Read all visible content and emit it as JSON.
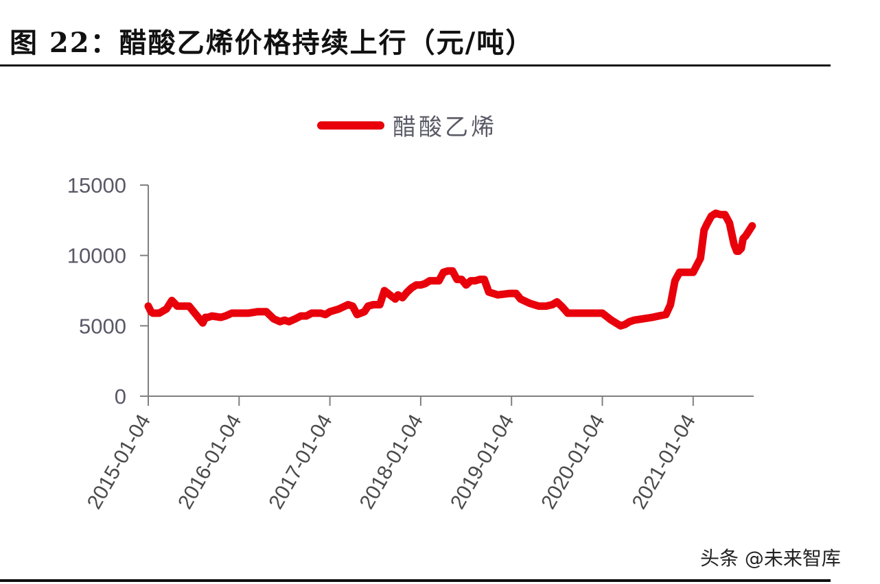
{
  "figure": {
    "title": "图 22：醋酸乙烯价格持续上行（元/吨）",
    "watermark": "头条 @未来智库"
  },
  "chart_data": {
    "type": "line",
    "title": "醋酸乙烯价格持续上行（元/吨）",
    "figure_label": "图 22",
    "xlabel": "",
    "ylabel": "",
    "ylim": [
      0,
      15000
    ],
    "yticks": [
      0,
      5000,
      10000,
      15000
    ],
    "ytick_labels": [
      "0",
      "5000",
      "10000",
      "15000"
    ],
    "xtick_labels": [
      "2015-01-04",
      "2016-01-04",
      "2017-01-04",
      "2018-01-04",
      "2019-01-04",
      "2020-01-04",
      "2021-01-04"
    ],
    "xlim_years": [
      2015.0,
      2021.67
    ],
    "grid": false,
    "legend_position": "top-center",
    "legend": [
      "醋酸乙烯"
    ],
    "series": [
      {
        "name": "醋酸乙烯",
        "color": "#e8000b",
        "x": [
          2015.0,
          2015.03,
          2015.05,
          2015.12,
          2015.2,
          2015.26,
          2015.32,
          2015.38,
          2015.45,
          2015.55,
          2015.6,
          2015.63,
          2015.66,
          2015.7,
          2015.8,
          2015.85,
          2015.92,
          2016.0,
          2016.1,
          2016.2,
          2016.3,
          2016.38,
          2016.45,
          2016.5,
          2016.55,
          2016.62,
          2016.68,
          2016.74,
          2016.8,
          2016.9,
          2016.95,
          2017.0,
          2017.1,
          2017.2,
          2017.25,
          2017.3,
          2017.38,
          2017.42,
          2017.48,
          2017.55,
          2017.6,
          2017.66,
          2017.72,
          2017.75,
          2017.8,
          2017.85,
          2017.9,
          2017.95,
          2018.0,
          2018.05,
          2018.1,
          2018.2,
          2018.25,
          2018.3,
          2018.35,
          2018.4,
          2018.45,
          2018.5,
          2018.55,
          2018.6,
          2018.65,
          2018.7,
          2018.75,
          2018.85,
          2018.98,
          2019.0,
          2019.05,
          2019.1,
          2019.2,
          2019.3,
          2019.38,
          2019.45,
          2019.5,
          2019.55,
          2019.62,
          2019.7,
          2019.8,
          2019.85,
          2019.9,
          2019.95,
          2020.0,
          2020.1,
          2020.2,
          2020.25,
          2020.3,
          2020.35,
          2020.45,
          2020.55,
          2020.62,
          2020.7,
          2020.75,
          2020.8,
          2020.85,
          2020.9,
          2020.95,
          2021.0,
          2021.08,
          2021.12,
          2021.15,
          2021.2,
          2021.25,
          2021.3,
          2021.35,
          2021.4,
          2021.45,
          2021.48,
          2021.5,
          2021.53,
          2021.55,
          2021.58,
          2021.62,
          2021.65
        ],
        "y": [
          6400,
          6000,
          5900,
          5900,
          6200,
          6800,
          6400,
          6400,
          6400,
          5600,
          5200,
          5600,
          5600,
          5700,
          5600,
          5700,
          5900,
          5900,
          5900,
          6000,
          6000,
          5500,
          5300,
          5400,
          5300,
          5500,
          5700,
          5700,
          5900,
          5900,
          5800,
          6000,
          6200,
          6500,
          6400,
          5800,
          6000,
          6400,
          6500,
          6500,
          7500,
          7200,
          6900,
          7200,
          7000,
          7400,
          7700,
          7900,
          7900,
          8000,
          8200,
          8200,
          8800,
          8900,
          8900,
          8300,
          8300,
          7900,
          8200,
          8200,
          8300,
          8300,
          7400,
          7200,
          7300,
          7300,
          7300,
          6900,
          6600,
          6400,
          6400,
          6500,
          6700,
          6400,
          5900,
          5900,
          5900,
          5900,
          5900,
          5900,
          5900,
          5400,
          5000,
          5100,
          5300,
          5400,
          5500,
          5600,
          5700,
          5800,
          6500,
          8200,
          8800,
          8800,
          8800,
          8800,
          9800,
          11800,
          12200,
          12800,
          13000,
          12900,
          12900,
          12300,
          10800,
          10300,
          10300,
          10500,
          11200,
          11400,
          11800,
          12100
        ]
      }
    ]
  }
}
